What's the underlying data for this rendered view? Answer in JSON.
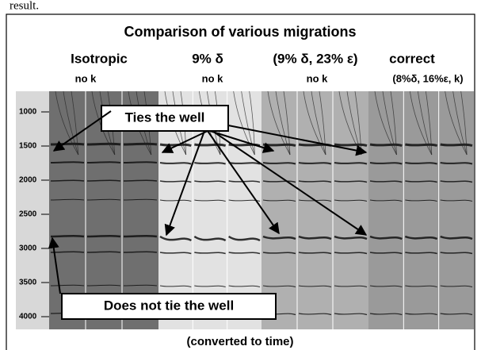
{
  "caption_fragment": "result.",
  "title": "Comparison of various migrations",
  "columns": [
    {
      "label": "Isotropic",
      "sub": "no k"
    },
    {
      "label": "9% δ",
      "sub": "no k"
    },
    {
      "label": "(9% δ, 23% ε)",
      "sub": "no k"
    },
    {
      "label": "correct",
      "sub": "(8%δ, 16%ε, k)"
    }
  ],
  "depth_labels": [
    "1000",
    "1500",
    "2000",
    "2500",
    "3000",
    "3500",
    "4000"
  ],
  "callouts": {
    "ties": "Ties the well",
    "not_ties": "Does not tie the well"
  },
  "footer": "(converted to time)"
}
